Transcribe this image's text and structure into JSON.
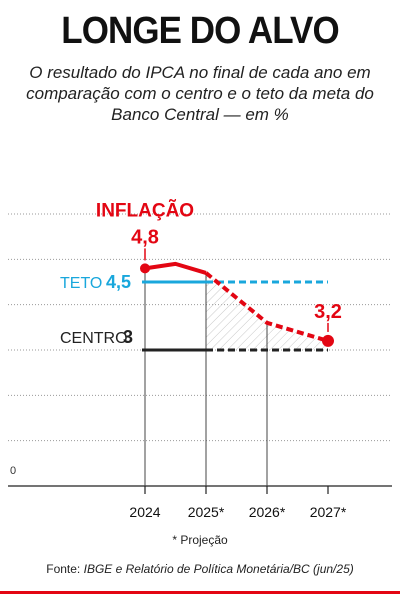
{
  "title": "LONGE DO ALVO",
  "subtitle": "O resultado do IPCA no final de cada ano em comparação com o centro e o teto da meta do Banco Central — em %",
  "footnote": "* Projeção",
  "source_label": "Fonte:",
  "source_text": "IBGE e Relatório de Política Monetária/BC (jun/25)",
  "colors": {
    "inflacao": "#e30613",
    "teto": "#19a7dc",
    "centro": "#222222",
    "grid": "#9a9a9a",
    "text": "#111111"
  },
  "chart_data": {
    "type": "line",
    "categories": [
      "2024",
      "2025*",
      "2026*",
      "2027*"
    ],
    "ylim": [
      0,
      6
    ],
    "grid": true,
    "y_tick_labels": [
      "0"
    ],
    "series": [
      {
        "name": "INFLAÇÃO",
        "x": [
          2024,
          2024.5,
          2025,
          2026,
          2027
        ],
        "values": [
          4.8,
          4.9,
          4.7,
          3.6,
          3.2
        ],
        "labels": [
          {
            "x": 2024,
            "text": "4,8"
          },
          {
            "x": 2027,
            "text": "3,2"
          }
        ]
      },
      {
        "name": "TETO",
        "value": 4.5,
        "value_label": "4,5"
      },
      {
        "name": "CENTRO",
        "value": 3,
        "value_label": "3"
      }
    ]
  }
}
